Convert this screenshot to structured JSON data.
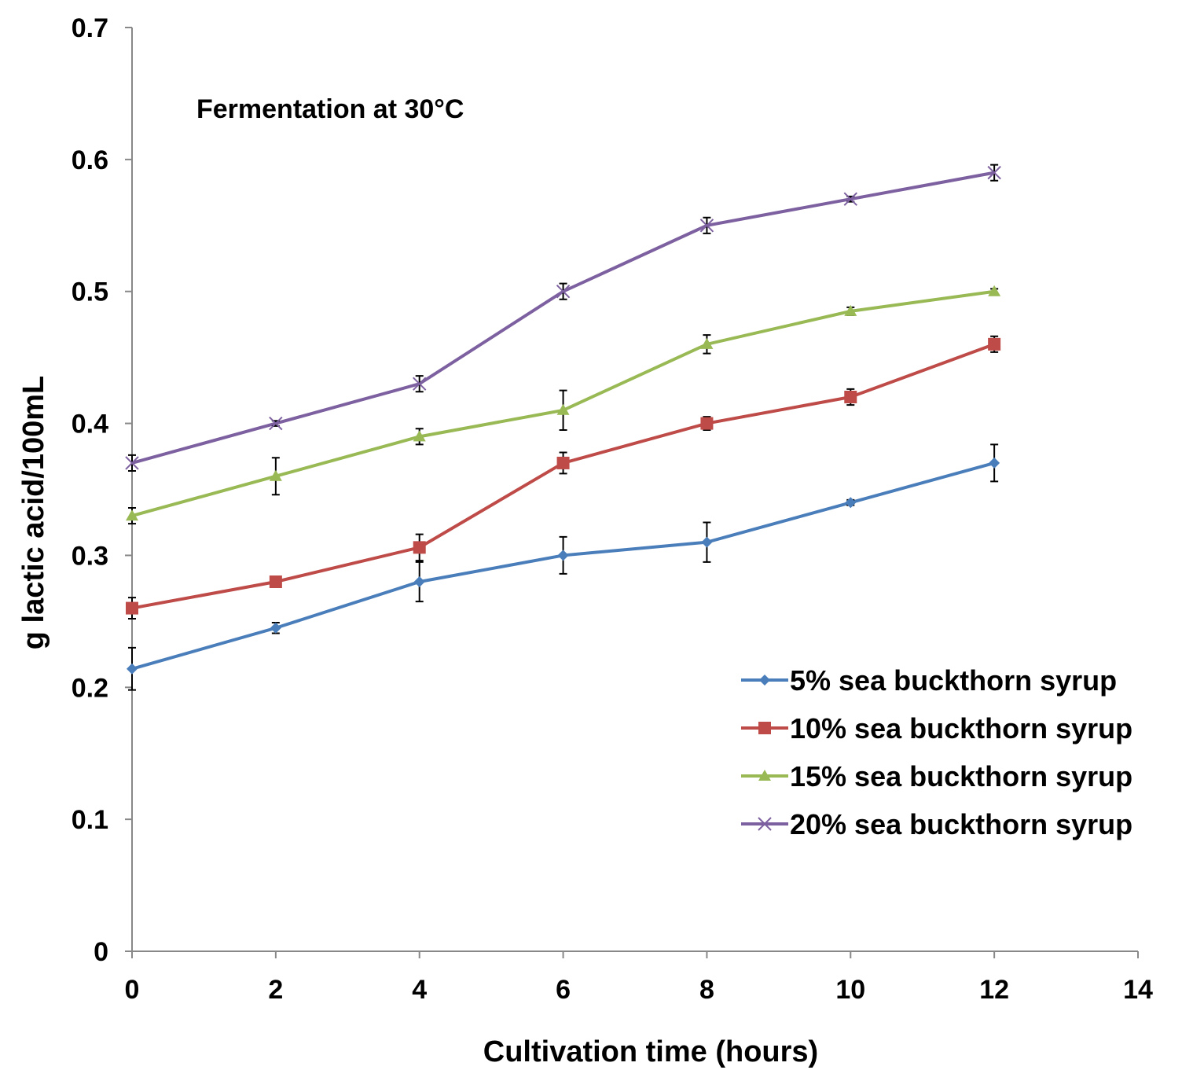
{
  "chart_data": {
    "type": "line",
    "annotation": "Fermentation at 30°C",
    "xlabel": "Cultivation  time (hours)",
    "ylabel": "g lactic acid/100mL",
    "xlim": [
      0,
      14
    ],
    "ylim": [
      0,
      0.7
    ],
    "xticks": [
      "0",
      "2",
      "4",
      "6",
      "8",
      "10",
      "12",
      "14"
    ],
    "yticks": [
      "0",
      "0.1",
      "0.2",
      "0.3",
      "0.4",
      "0.5",
      "0.6",
      "0.7"
    ],
    "grid": false,
    "legend_position": "bottom-right",
    "x": [
      0,
      2,
      4,
      6,
      8,
      10,
      12
    ],
    "series": [
      {
        "name": "5% sea buckthorn syrup",
        "color": "#4a7ebb",
        "marker": "diamond",
        "values": [
          0.214,
          0.245,
          0.28,
          0.3,
          0.31,
          0.34,
          0.37
        ],
        "errors": [
          0.016,
          0.004,
          0.015,
          0.014,
          0.015,
          0.002,
          0.014
        ]
      },
      {
        "name": "10% sea buckthorn syrup",
        "color": "#be4b48",
        "marker": "square",
        "values": [
          0.26,
          0.28,
          0.306,
          0.37,
          0.4,
          0.42,
          0.46
        ],
        "errors": [
          0.008,
          0.002,
          0.01,
          0.008,
          0.005,
          0.006,
          0.006
        ]
      },
      {
        "name": "15% sea buckthorn syrup",
        "color": "#98b954",
        "marker": "triangle",
        "values": [
          0.33,
          0.36,
          0.39,
          0.41,
          0.46,
          0.485,
          0.5
        ],
        "errors": [
          0.006,
          0.014,
          0.006,
          0.015,
          0.007,
          0.003,
          0.002
        ]
      },
      {
        "name": "20% sea buckthorn syrup",
        "color": "#7d60a0",
        "marker": "x",
        "values": [
          0.37,
          0.4,
          0.43,
          0.5,
          0.55,
          0.57,
          0.59
        ],
        "errors": [
          0.006,
          0.002,
          0.006,
          0.006,
          0.006,
          0.002,
          0.006
        ]
      }
    ]
  }
}
